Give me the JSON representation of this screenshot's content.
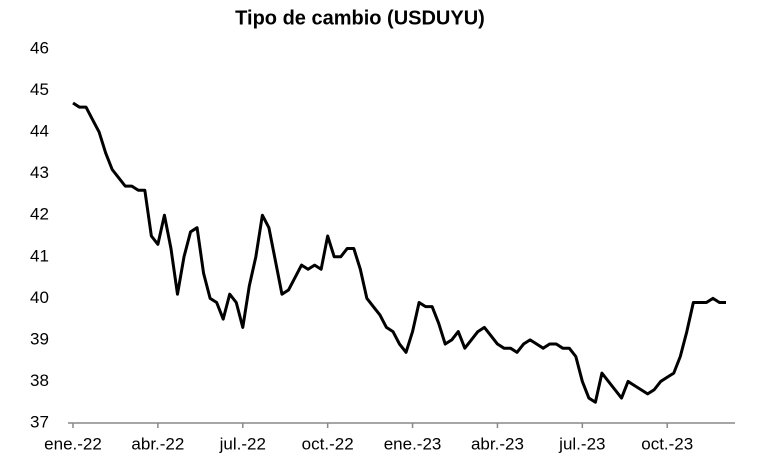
{
  "chart_data": {
    "type": "line",
    "title": "Tipo de cambio (USDUYU)",
    "categories": [
      "ene.-22",
      null,
      null,
      null,
      null,
      null,
      null,
      null,
      null,
      null,
      null,
      null,
      null,
      "abr.-22",
      null,
      null,
      null,
      null,
      null,
      null,
      null,
      null,
      null,
      null,
      null,
      null,
      "jul.-22",
      null,
      null,
      null,
      null,
      null,
      null,
      null,
      null,
      null,
      null,
      null,
      null,
      "oct.-22",
      null,
      null,
      null,
      null,
      null,
      null,
      null,
      null,
      null,
      null,
      null,
      null,
      "ene.-23",
      null,
      null,
      null,
      null,
      null,
      null,
      null,
      null,
      null,
      null,
      null,
      null,
      "abr.-23",
      null,
      null,
      null,
      null,
      null,
      null,
      null,
      null,
      null,
      null,
      null,
      null,
      "jul.-23",
      null,
      null,
      null,
      null,
      null,
      null,
      null,
      null,
      null,
      null,
      null,
      null,
      "oct.-23",
      null,
      null,
      null,
      null,
      null,
      null,
      null,
      null,
      null
    ],
    "values": [
      44.7,
      44.6,
      44.6,
      44.3,
      44.0,
      43.5,
      43.1,
      42.9,
      42.7,
      42.7,
      42.6,
      42.6,
      41.5,
      41.3,
      42.0,
      41.2,
      40.1,
      41.0,
      41.6,
      41.7,
      40.6,
      40.0,
      39.9,
      39.5,
      40.1,
      39.9,
      39.3,
      40.3,
      41.0,
      42.0,
      41.7,
      40.9,
      40.1,
      40.2,
      40.5,
      40.8,
      40.7,
      40.8,
      40.7,
      41.5,
      41.0,
      41.0,
      41.2,
      41.2,
      40.7,
      40.0,
      39.8,
      39.6,
      39.3,
      39.2,
      38.9,
      38.7,
      39.2,
      39.9,
      39.8,
      39.8,
      39.4,
      38.9,
      39.0,
      39.2,
      38.8,
      39.0,
      39.2,
      39.3,
      39.1,
      38.9,
      38.8,
      38.8,
      38.7,
      38.9,
      39.0,
      38.9,
      38.8,
      38.9,
      38.9,
      38.8,
      38.8,
      38.6,
      38.0,
      37.6,
      37.5,
      38.2,
      38.0,
      37.8,
      37.6,
      38.0,
      37.9,
      37.8,
      37.7,
      37.8,
      38.0,
      38.1,
      38.2,
      38.6,
      39.2,
      39.9,
      39.9,
      39.9,
      40.0,
      39.9,
      39.9
    ],
    "color": "#000000",
    "ylim": [
      37,
      46
    ],
    "yticks": [
      37,
      38,
      39,
      40,
      41,
      42,
      43,
      44,
      45,
      46
    ],
    "grid": false
  }
}
